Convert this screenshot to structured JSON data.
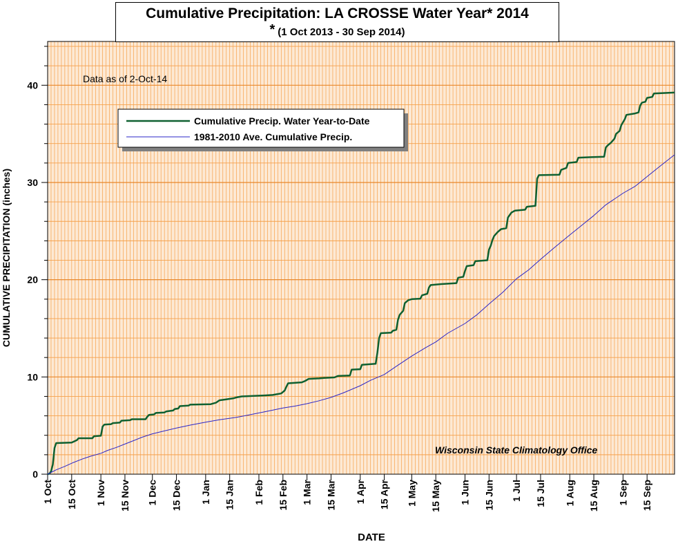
{
  "chart_data": {
    "type": "line",
    "title": "Cumulative Precipitation: LA CROSSE Water Year* 2014",
    "subtitle_marker": "*",
    "subtitle": "(1 Oct 2013 - 30 Sep 2014)",
    "xlabel": "DATE",
    "ylabel": "CUMULATIVE PRECIPITATION (inches)",
    "ylim": [
      0,
      44.5
    ],
    "yticks": [
      0,
      10,
      20,
      30,
      40
    ],
    "x_ticks": [
      {
        "day": 0,
        "label": "1 Oct"
      },
      {
        "day": 14,
        "label": "15 Oct"
      },
      {
        "day": 31,
        "label": "1 Nov"
      },
      {
        "day": 45,
        "label": "15 Nov"
      },
      {
        "day": 61,
        "label": "1 Dec"
      },
      {
        "day": 75,
        "label": "15 Dec"
      },
      {
        "day": 92,
        "label": "1 Jan"
      },
      {
        "day": 106,
        "label": "15 Jan"
      },
      {
        "day": 123,
        "label": "1 Feb"
      },
      {
        "day": 137,
        "label": "15 Feb"
      },
      {
        "day": 151,
        "label": "1 Mar"
      },
      {
        "day": 165,
        "label": "15 Mar"
      },
      {
        "day": 182,
        "label": "1 Apr"
      },
      {
        "day": 196,
        "label": "15 Apr"
      },
      {
        "day": 212,
        "label": "1 May"
      },
      {
        "day": 226,
        "label": "15 May"
      },
      {
        "day": 243,
        "label": "1 Jun"
      },
      {
        "day": 257,
        "label": "15 Jun"
      },
      {
        "day": 273,
        "label": "1 Jul"
      },
      {
        "day": 287,
        "label": "15 Jul"
      },
      {
        "day": 304,
        "label": "1 Aug"
      },
      {
        "day": 318,
        "label": "15 Aug"
      },
      {
        "day": 335,
        "label": "1 Sep"
      },
      {
        "day": 349,
        "label": "15 Sep"
      }
    ],
    "xlim": [
      0,
      365
    ],
    "annotation": "Data as of 2-Oct-14",
    "credit": "Wisconsin State Climatology Office",
    "grid": "on",
    "legend_position": "top-left",
    "colors": {
      "background": "#fde9d4",
      "gridline": "#f5a04a",
      "major_gridline": "#e8872a",
      "observed": "#0e6030",
      "average": "#2a24c8"
    },
    "series": [
      {
        "name": "Cumulative Precip.  Water Year-to-Date",
        "points": [
          [
            0,
            0
          ],
          [
            1,
            0.05
          ],
          [
            2,
            0.3
          ],
          [
            3,
            1.0
          ],
          [
            4,
            2.7
          ],
          [
            5,
            3.2
          ],
          [
            14,
            3.25
          ],
          [
            17,
            3.5
          ],
          [
            18,
            3.7
          ],
          [
            26,
            3.7
          ],
          [
            27,
            3.9
          ],
          [
            31,
            3.95
          ],
          [
            32,
            4.9
          ],
          [
            33,
            5.1
          ],
          [
            37,
            5.15
          ],
          [
            38,
            5.25
          ],
          [
            42,
            5.3
          ],
          [
            43,
            5.5
          ],
          [
            48,
            5.55
          ],
          [
            49,
            5.65
          ],
          [
            57,
            5.65
          ],
          [
            58,
            5.9
          ],
          [
            59,
            6.1
          ],
          [
            62,
            6.15
          ],
          [
            63,
            6.3
          ],
          [
            68,
            6.35
          ],
          [
            69,
            6.45
          ],
          [
            73,
            6.55
          ],
          [
            74,
            6.7
          ],
          [
            76,
            6.75
          ],
          [
            77,
            7.0
          ],
          [
            82,
            7.05
          ],
          [
            83,
            7.15
          ],
          [
            95,
            7.2
          ],
          [
            98,
            7.35
          ],
          [
            100,
            7.6
          ],
          [
            104,
            7.7
          ],
          [
            108,
            7.8
          ],
          [
            110,
            7.9
          ],
          [
            113,
            8.0
          ],
          [
            120,
            8.05
          ],
          [
            126,
            8.1
          ],
          [
            131,
            8.15
          ],
          [
            136,
            8.3
          ],
          [
            138,
            8.6
          ],
          [
            139,
            9.0
          ],
          [
            140,
            9.35
          ],
          [
            148,
            9.45
          ],
          [
            150,
            9.6
          ],
          [
            152,
            9.8
          ],
          [
            158,
            9.85
          ],
          [
            161,
            9.9
          ],
          [
            167,
            9.95
          ],
          [
            169,
            10.1
          ],
          [
            176,
            10.15
          ],
          [
            177,
            10.75
          ],
          [
            182,
            10.8
          ],
          [
            183,
            11.25
          ],
          [
            191,
            11.35
          ],
          [
            192,
            12.5
          ],
          [
            193,
            14.0
          ],
          [
            194,
            14.5
          ],
          [
            200,
            14.55
          ],
          [
            201,
            14.75
          ],
          [
            203,
            14.85
          ],
          [
            204,
            15.9
          ],
          [
            205,
            16.4
          ],
          [
            207,
            16.8
          ],
          [
            208,
            17.6
          ],
          [
            210,
            17.9
          ],
          [
            212,
            18.0
          ],
          [
            217,
            18.05
          ],
          [
            218,
            18.4
          ],
          [
            221,
            18.55
          ],
          [
            222,
            19.2
          ],
          [
            223,
            19.45
          ],
          [
            229,
            19.55
          ],
          [
            238,
            19.65
          ],
          [
            239,
            20.2
          ],
          [
            242,
            20.3
          ],
          [
            243,
            20.9
          ],
          [
            244,
            21.4
          ],
          [
            248,
            21.5
          ],
          [
            249,
            21.9
          ],
          [
            256,
            22.0
          ],
          [
            257,
            23.1
          ],
          [
            258,
            23.5
          ],
          [
            259,
            24.1
          ],
          [
            260,
            24.5
          ],
          [
            262,
            24.9
          ],
          [
            264,
            25.2
          ],
          [
            267,
            25.3
          ],
          [
            268,
            26.4
          ],
          [
            270,
            26.9
          ],
          [
            272,
            27.1
          ],
          [
            278,
            27.2
          ],
          [
            279,
            27.5
          ],
          [
            284,
            27.6
          ],
          [
            285,
            30.4
          ],
          [
            286,
            30.75
          ],
          [
            298,
            30.8
          ],
          [
            299,
            31.3
          ],
          [
            302,
            31.5
          ],
          [
            303,
            32.0
          ],
          [
            308,
            32.1
          ],
          [
            309,
            32.55
          ],
          [
            316,
            32.6
          ],
          [
            324,
            32.65
          ],
          [
            325,
            33.6
          ],
          [
            326,
            33.8
          ],
          [
            328,
            34.1
          ],
          [
            330,
            34.5
          ],
          [
            331,
            35.0
          ],
          [
            333,
            35.3
          ],
          [
            334,
            35.9
          ],
          [
            336,
            36.5
          ],
          [
            337,
            36.95
          ],
          [
            342,
            37.1
          ],
          [
            344,
            37.2
          ],
          [
            345,
            37.9
          ],
          [
            346,
            38.2
          ],
          [
            348,
            38.3
          ],
          [
            349,
            38.7
          ],
          [
            352,
            38.8
          ],
          [
            353,
            39.15
          ],
          [
            365,
            39.25
          ]
        ]
      },
      {
        "name": "1981-2010 Ave. Cumulative Precip.",
        "points": [
          [
            0,
            0
          ],
          [
            5,
            0.45
          ],
          [
            10,
            0.8
          ],
          [
            15,
            1.2
          ],
          [
            20,
            1.55
          ],
          [
            25,
            1.85
          ],
          [
            31,
            2.15
          ],
          [
            35,
            2.45
          ],
          [
            40,
            2.75
          ],
          [
            45,
            3.1
          ],
          [
            50,
            3.45
          ],
          [
            55,
            3.8
          ],
          [
            61,
            4.15
          ],
          [
            68,
            4.45
          ],
          [
            75,
            4.75
          ],
          [
            83,
            5.05
          ],
          [
            92,
            5.35
          ],
          [
            100,
            5.6
          ],
          [
            110,
            5.85
          ],
          [
            116,
            6.05
          ],
          [
            123,
            6.3
          ],
          [
            130,
            6.55
          ],
          [
            137,
            6.8
          ],
          [
            144,
            7.0
          ],
          [
            151,
            7.25
          ],
          [
            158,
            7.55
          ],
          [
            165,
            7.9
          ],
          [
            172,
            8.35
          ],
          [
            182,
            9.1
          ],
          [
            188,
            9.65
          ],
          [
            196,
            10.25
          ],
          [
            203,
            11.1
          ],
          [
            212,
            12.15
          ],
          [
            220,
            13.0
          ],
          [
            226,
            13.6
          ],
          [
            233,
            14.5
          ],
          [
            243,
            15.5
          ],
          [
            250,
            16.4
          ],
          [
            257,
            17.5
          ],
          [
            265,
            18.7
          ],
          [
            273,
            20.1
          ],
          [
            280,
            21.0
          ],
          [
            287,
            22.1
          ],
          [
            295,
            23.3
          ],
          [
            304,
            24.6
          ],
          [
            311,
            25.6
          ],
          [
            318,
            26.6
          ],
          [
            325,
            27.7
          ],
          [
            335,
            28.9
          ],
          [
            342,
            29.6
          ],
          [
            349,
            30.6
          ],
          [
            356,
            31.6
          ],
          [
            365,
            32.85
          ]
        ]
      }
    ]
  }
}
